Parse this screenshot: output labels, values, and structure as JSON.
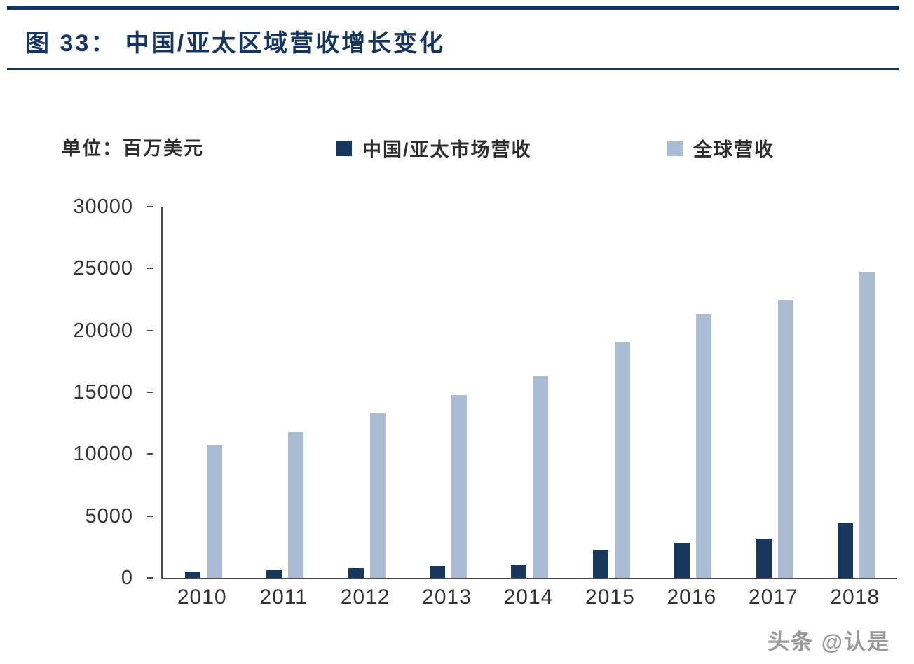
{
  "header": {
    "title": "图  33：  中国/亚太区域营收增长变化"
  },
  "chart": {
    "unit_label": "单位：百万美元"
  },
  "chart_data": {
    "type": "bar",
    "title": "中国/亚太区域营收增长变化",
    "unit": "百万美元",
    "categories": [
      "2010",
      "2011",
      "2012",
      "2013",
      "2014",
      "2015",
      "2016",
      "2017",
      "2018"
    ],
    "series": [
      {
        "name": "中国/亚太市场营收",
        "color": "#17375d",
        "values": [
          500,
          650,
          800,
          950,
          1100,
          2250,
          2850,
          3150,
          4400
        ]
      },
      {
        "name": "全球营收",
        "color": "#a9bcd3",
        "values": [
          10700,
          11800,
          13300,
          14800,
          16300,
          19100,
          21300,
          22400,
          24700
        ]
      }
    ],
    "ylim": [
      0,
      30000
    ],
    "yticks": [
      0,
      5000,
      10000,
      15000,
      20000,
      25000,
      30000
    ],
    "legend_position": "top",
    "grid": false
  },
  "footer": {
    "watermark": "头条 @认是"
  }
}
